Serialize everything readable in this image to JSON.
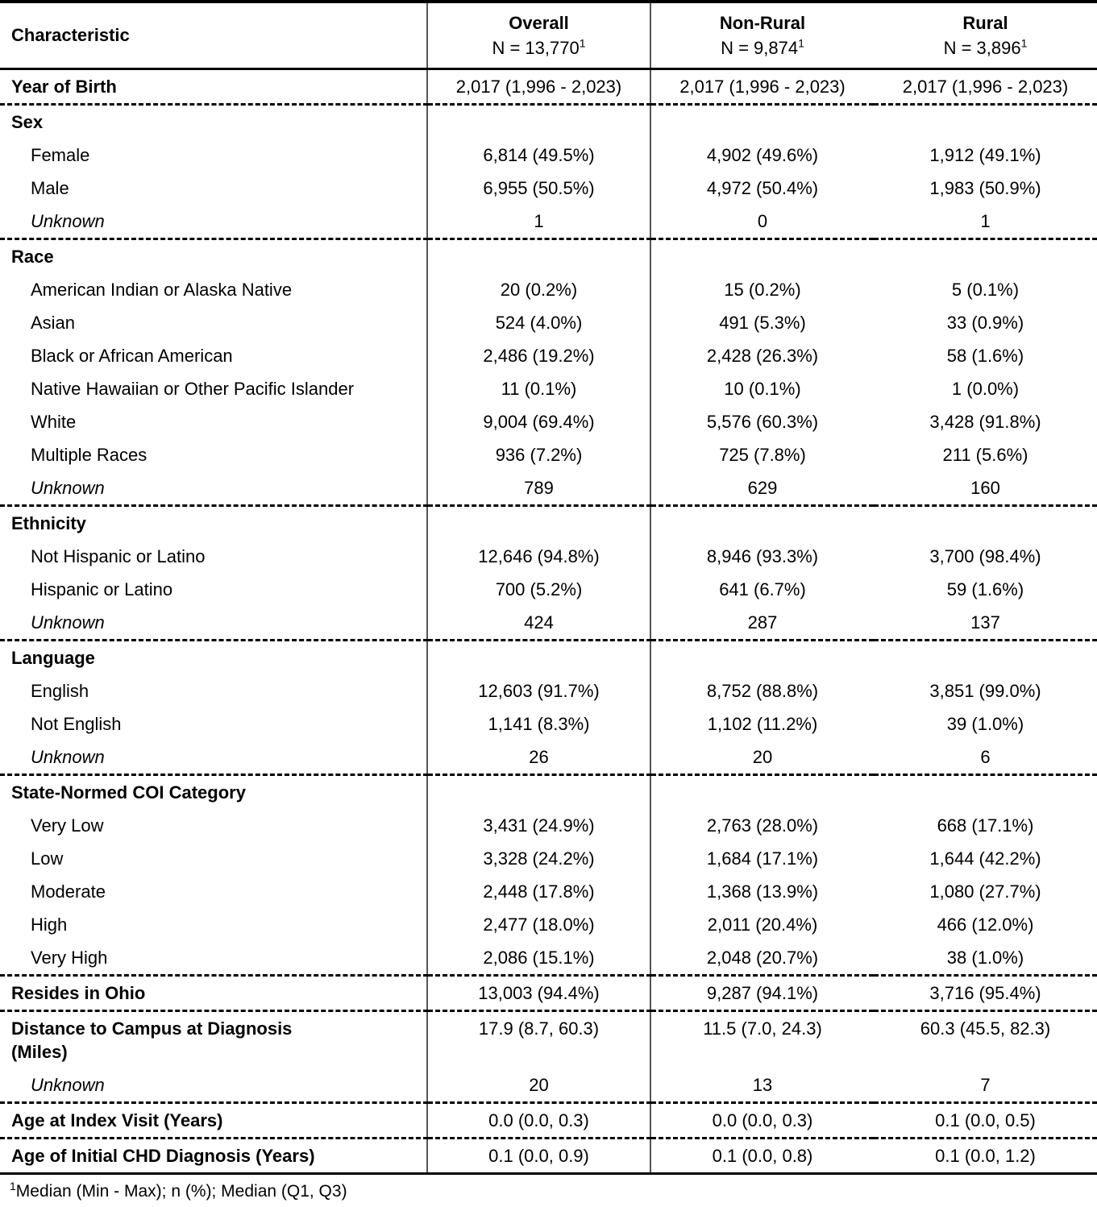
{
  "table": {
    "header": {
      "characteristic": "Characteristic",
      "columns": [
        {
          "title": "Overall",
          "n": "N = 13,770",
          "sup": "1"
        },
        {
          "title": "Non-Rural",
          "n": "N = 9,874",
          "sup": "1"
        },
        {
          "title": "Rural",
          "n": "N = 3,896",
          "sup": "1"
        }
      ]
    },
    "rows": [
      {
        "label": "Year of Birth",
        "style": "bold",
        "values": [
          "2,017 (1,996 - 2,023)",
          "2,017 (1,996 - 2,023)",
          "2,017 (1,996 - 2,023)"
        ],
        "separator_after": true
      },
      {
        "label": "Sex",
        "style": "group"
      },
      {
        "label": "Female",
        "style": "item",
        "values": [
          "6,814 (49.5%)",
          "4,902 (49.6%)",
          "1,912 (49.1%)"
        ]
      },
      {
        "label": "Male",
        "style": "item",
        "values": [
          "6,955 (50.5%)",
          "4,972 (50.4%)",
          "1,983 (50.9%)"
        ]
      },
      {
        "label": "Unknown",
        "style": "unknown",
        "values": [
          "1",
          "0",
          "1"
        ],
        "separator_after": true
      },
      {
        "label": "Race",
        "style": "group"
      },
      {
        "label": "American Indian or Alaska Native",
        "style": "item",
        "values": [
          "20 (0.2%)",
          "15 (0.2%)",
          "5 (0.1%)"
        ]
      },
      {
        "label": "Asian",
        "style": "item",
        "values": [
          "524 (4.0%)",
          "491 (5.3%)",
          "33 (0.9%)"
        ]
      },
      {
        "label": "Black or African American",
        "style": "item",
        "values": [
          "2,486 (19.2%)",
          "2,428 (26.3%)",
          "58 (1.6%)"
        ]
      },
      {
        "label": "Native Hawaiian or Other Pacific Islander",
        "style": "item",
        "values": [
          "11 (0.1%)",
          "10 (0.1%)",
          "1 (0.0%)"
        ]
      },
      {
        "label": "White",
        "style": "item",
        "values": [
          "9,004 (69.4%)",
          "5,576 (60.3%)",
          "3,428 (91.8%)"
        ]
      },
      {
        "label": "Multiple Races",
        "style": "item",
        "values": [
          "936 (7.2%)",
          "725 (7.8%)",
          "211 (5.6%)"
        ]
      },
      {
        "label": "Unknown",
        "style": "unknown",
        "values": [
          "789",
          "629",
          "160"
        ],
        "separator_after": true
      },
      {
        "label": "Ethnicity",
        "style": "group"
      },
      {
        "label": "Not Hispanic or Latino",
        "style": "item",
        "values": [
          "12,646 (94.8%)",
          "8,946 (93.3%)",
          "3,700 (98.4%)"
        ]
      },
      {
        "label": "Hispanic or Latino",
        "style": "item",
        "values": [
          "700 (5.2%)",
          "641 (6.7%)",
          "59 (1.6%)"
        ]
      },
      {
        "label": "Unknown",
        "style": "unknown",
        "values": [
          "424",
          "287",
          "137"
        ],
        "separator_after": true
      },
      {
        "label": "Language",
        "style": "group"
      },
      {
        "label": "English",
        "style": "item",
        "values": [
          "12,603 (91.7%)",
          "8,752 (88.8%)",
          "3,851 (99.0%)"
        ]
      },
      {
        "label": "Not English",
        "style": "item",
        "values": [
          "1,141 (8.3%)",
          "1,102 (11.2%)",
          "39 (1.0%)"
        ]
      },
      {
        "label": "Unknown",
        "style": "unknown",
        "values": [
          "26",
          "20",
          "6"
        ],
        "separator_after": true
      },
      {
        "label": "State-Normed COI Category",
        "style": "group"
      },
      {
        "label": "Very Low",
        "style": "item",
        "values": [
          "3,431 (24.9%)",
          "2,763 (28.0%)",
          "668 (17.1%)"
        ]
      },
      {
        "label": "Low",
        "style": "item",
        "values": [
          "3,328 (24.2%)",
          "1,684 (17.1%)",
          "1,644 (42.2%)"
        ]
      },
      {
        "label": "Moderate",
        "style": "item",
        "values": [
          "2,448 (17.8%)",
          "1,368 (13.9%)",
          "1,080 (27.7%)"
        ]
      },
      {
        "label": "High",
        "style": "item",
        "values": [
          "2,477 (18.0%)",
          "2,011 (20.4%)",
          "466 (12.0%)"
        ]
      },
      {
        "label": "Very High",
        "style": "item",
        "values": [
          "2,086 (15.1%)",
          "2,048 (20.7%)",
          "38 (1.0%)"
        ],
        "separator_after": true
      },
      {
        "label": "Resides in Ohio",
        "style": "bold",
        "values": [
          "13,003 (94.4%)",
          "9,287 (94.1%)",
          "3,716 (95.4%)"
        ],
        "separator_after": true
      },
      {
        "label": "Distance to Campus at Diagnosis (Miles)",
        "style": "bold",
        "values": [
          "17.9 (8.7, 60.3)",
          "11.5 (7.0, 24.3)",
          "60.3 (45.5, 82.3)"
        ]
      },
      {
        "label": "Unknown",
        "style": "unknown",
        "values": [
          "20",
          "13",
          "7"
        ],
        "separator_after": true
      },
      {
        "label": "Age at Index Visit (Years)",
        "style": "bold",
        "values": [
          "0.0 (0.0, 0.3)",
          "0.0 (0.0, 0.3)",
          "0.1 (0.0, 0.5)"
        ],
        "separator_after": true
      },
      {
        "label": "Age of Initial CHD Diagnosis (Years)",
        "style": "bold",
        "values": [
          "0.1 (0.0, 0.9)",
          "0.1 (0.0, 0.8)",
          "0.1 (0.0, 1.2)"
        ]
      }
    ],
    "footnote": {
      "marker": "1",
      "text": "Median (Min - Max); n (%); Median (Q1, Q3)"
    }
  }
}
